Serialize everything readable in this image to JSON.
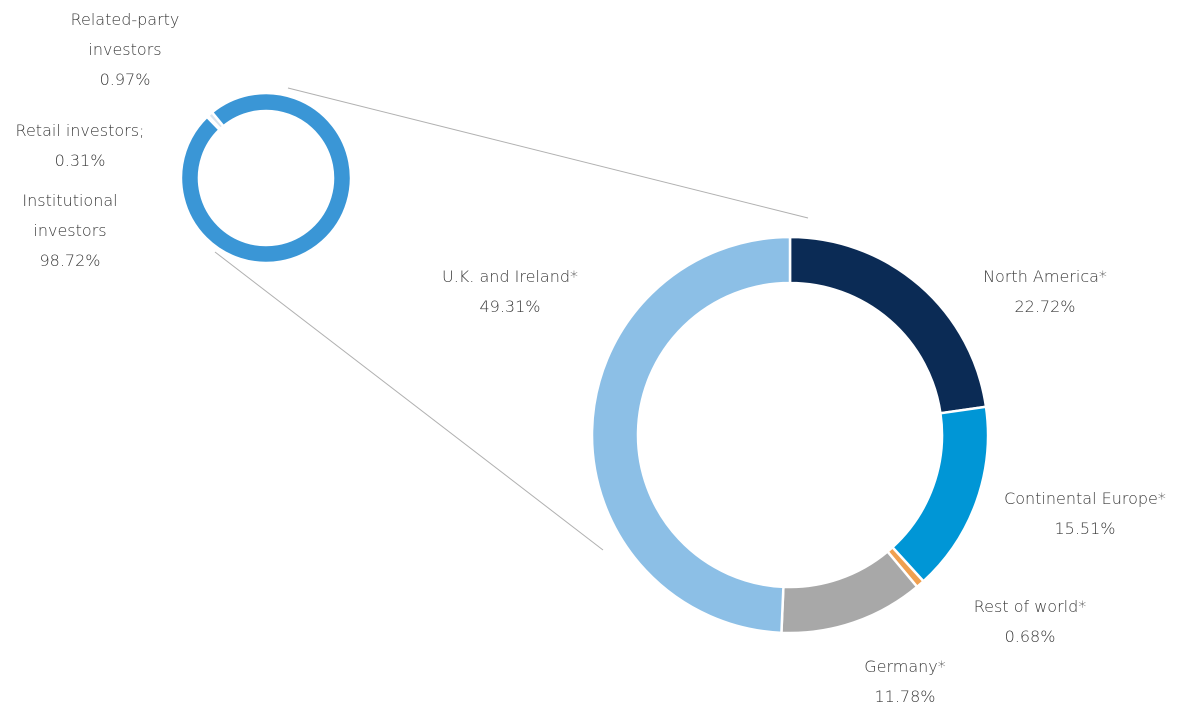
{
  "chart_data": [
    {
      "type": "donut",
      "categories": [
        "Retail investors;",
        "Related-party investors",
        "Institutional investors"
      ],
      "values": [
        0.31,
        0.97,
        98.72
      ],
      "value_labels": [
        "0.31%",
        "0.97%",
        "98.72%"
      ],
      "colors": [
        "#f2b48a",
        "#d9e4ee",
        "#3a96d6"
      ]
    },
    {
      "type": "donut",
      "categories": [
        "North America*",
        "Continental Europe*",
        "Rest of world*",
        "Germany*",
        "U.K. and Ireland*"
      ],
      "values": [
        22.72,
        15.51,
        0.68,
        11.78,
        49.31
      ],
      "value_labels": [
        "22.72%",
        "15.51%",
        "0.68%",
        "11.78%",
        "49.31%"
      ],
      "colors": [
        "#0b2b55",
        "#0096d6",
        "#f0a050",
        "#a8a8a8",
        "#8cbfe6"
      ]
    }
  ]
}
